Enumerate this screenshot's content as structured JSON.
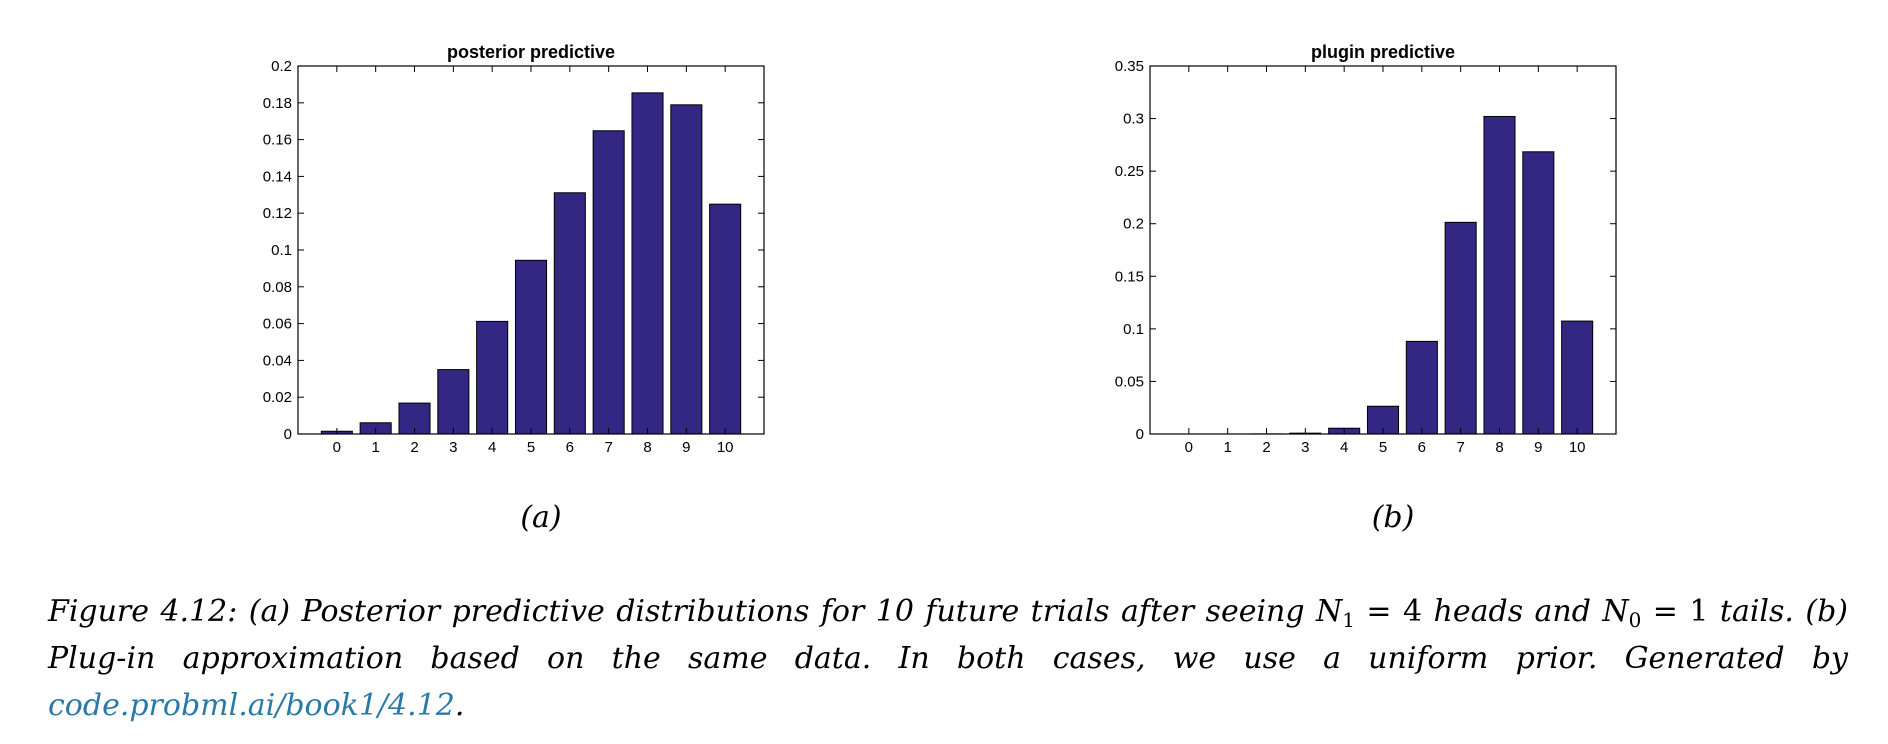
{
  "chart_data": [
    {
      "type": "bar",
      "title": "posterior predictive",
      "categories": [
        "0",
        "1",
        "2",
        "3",
        "4",
        "5",
        "6",
        "7",
        "8",
        "9",
        "10"
      ],
      "values": [
        0.0015,
        0.0061,
        0.0168,
        0.035,
        0.0612,
        0.0944,
        0.1311,
        0.1648,
        0.1854,
        0.1789,
        0.1249
      ],
      "ylim": [
        0,
        0.2
      ],
      "yticks": [
        "0",
        "0.02",
        "0.04",
        "0.06",
        "0.08",
        "0.1",
        "0.12",
        "0.14",
        "0.16",
        "0.18",
        "0.2"
      ],
      "ytick_values": [
        0,
        0.02,
        0.04,
        0.06,
        0.08,
        0.1,
        0.12,
        0.14,
        0.16,
        0.18,
        0.2
      ],
      "xlabel": "",
      "ylabel": "",
      "grid": false,
      "bar_color": "#342783",
      "panel_label": "(a)"
    },
    {
      "type": "bar",
      "title": "plugin predictive",
      "categories": [
        "0",
        "1",
        "2",
        "3",
        "4",
        "5",
        "6",
        "7",
        "8",
        "9",
        "10"
      ],
      "values": [
        0.0,
        0.0,
        0.0001,
        0.0008,
        0.0055,
        0.0264,
        0.0881,
        0.2013,
        0.302,
        0.2684,
        0.1074
      ],
      "ylim": [
        0,
        0.35
      ],
      "yticks": [
        "0",
        "0.05",
        "0.1",
        "0.15",
        "0.2",
        "0.25",
        "0.3",
        "0.35"
      ],
      "ytick_values": [
        0,
        0.05,
        0.1,
        0.15,
        0.2,
        0.25,
        0.3,
        0.35
      ],
      "xlabel": "",
      "ylabel": "",
      "grid": false,
      "bar_color": "#342783",
      "panel_label": "(b)"
    }
  ],
  "caption": {
    "prefix": "Figure 4.12: (a) Posterior predictive distributions for 10 future trials after seeing ",
    "n1_var": "N",
    "n1_sub": "1",
    "n1_eq": " = 4",
    "middle": " heads and ",
    "n0_var": "N",
    "n0_sub": "0",
    "n0_eq": " = 1",
    "suffix": " tails. (b) Plug-in approximation based on the same data. In both cases, we use a uniform prior. Generated by ",
    "link_text": "code.probml.ai/book1/4.12",
    "end": "."
  }
}
